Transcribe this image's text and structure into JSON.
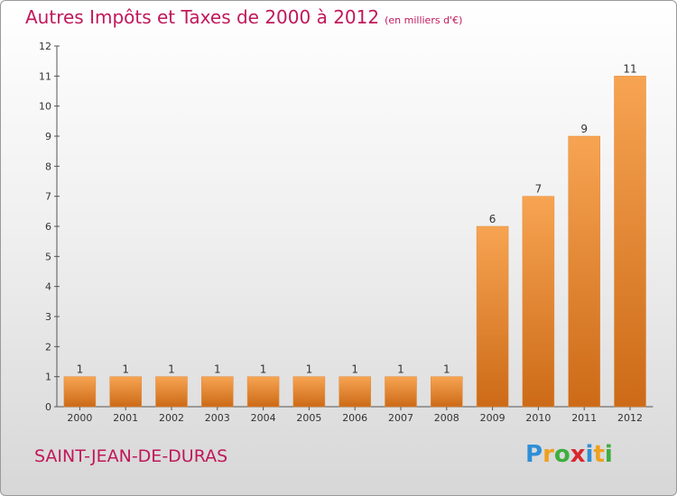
{
  "chart_data": {
    "type": "bar",
    "title": "Autres Impôts et Taxes de 2000 à 2012",
    "subtitle": "(en milliers d'€)",
    "categories": [
      "2000",
      "2001",
      "2002",
      "2003",
      "2004",
      "2005",
      "2006",
      "2007",
      "2008",
      "2009",
      "2010",
      "2011",
      "2012"
    ],
    "values": [
      1,
      1,
      1,
      1,
      1,
      1,
      1,
      1,
      1,
      6,
      7,
      9,
      11
    ],
    "ylim": [
      0,
      12
    ],
    "yticks": [
      0,
      1,
      2,
      3,
      4,
      5,
      6,
      7,
      8,
      9,
      10,
      11,
      12
    ],
    "grid": false,
    "bar_color": "#f0923a"
  },
  "commune": "SAINT-JEAN-DE-DURAS",
  "logo": {
    "letters": [
      "P",
      "r",
      "o",
      "x",
      "i",
      "t",
      "i"
    ],
    "colors": [
      "#2f8fd6",
      "#f0a020",
      "#3fae3f",
      "#d8282f",
      "#2f8fd6",
      "#f0a020",
      "#3fae3f"
    ]
  }
}
